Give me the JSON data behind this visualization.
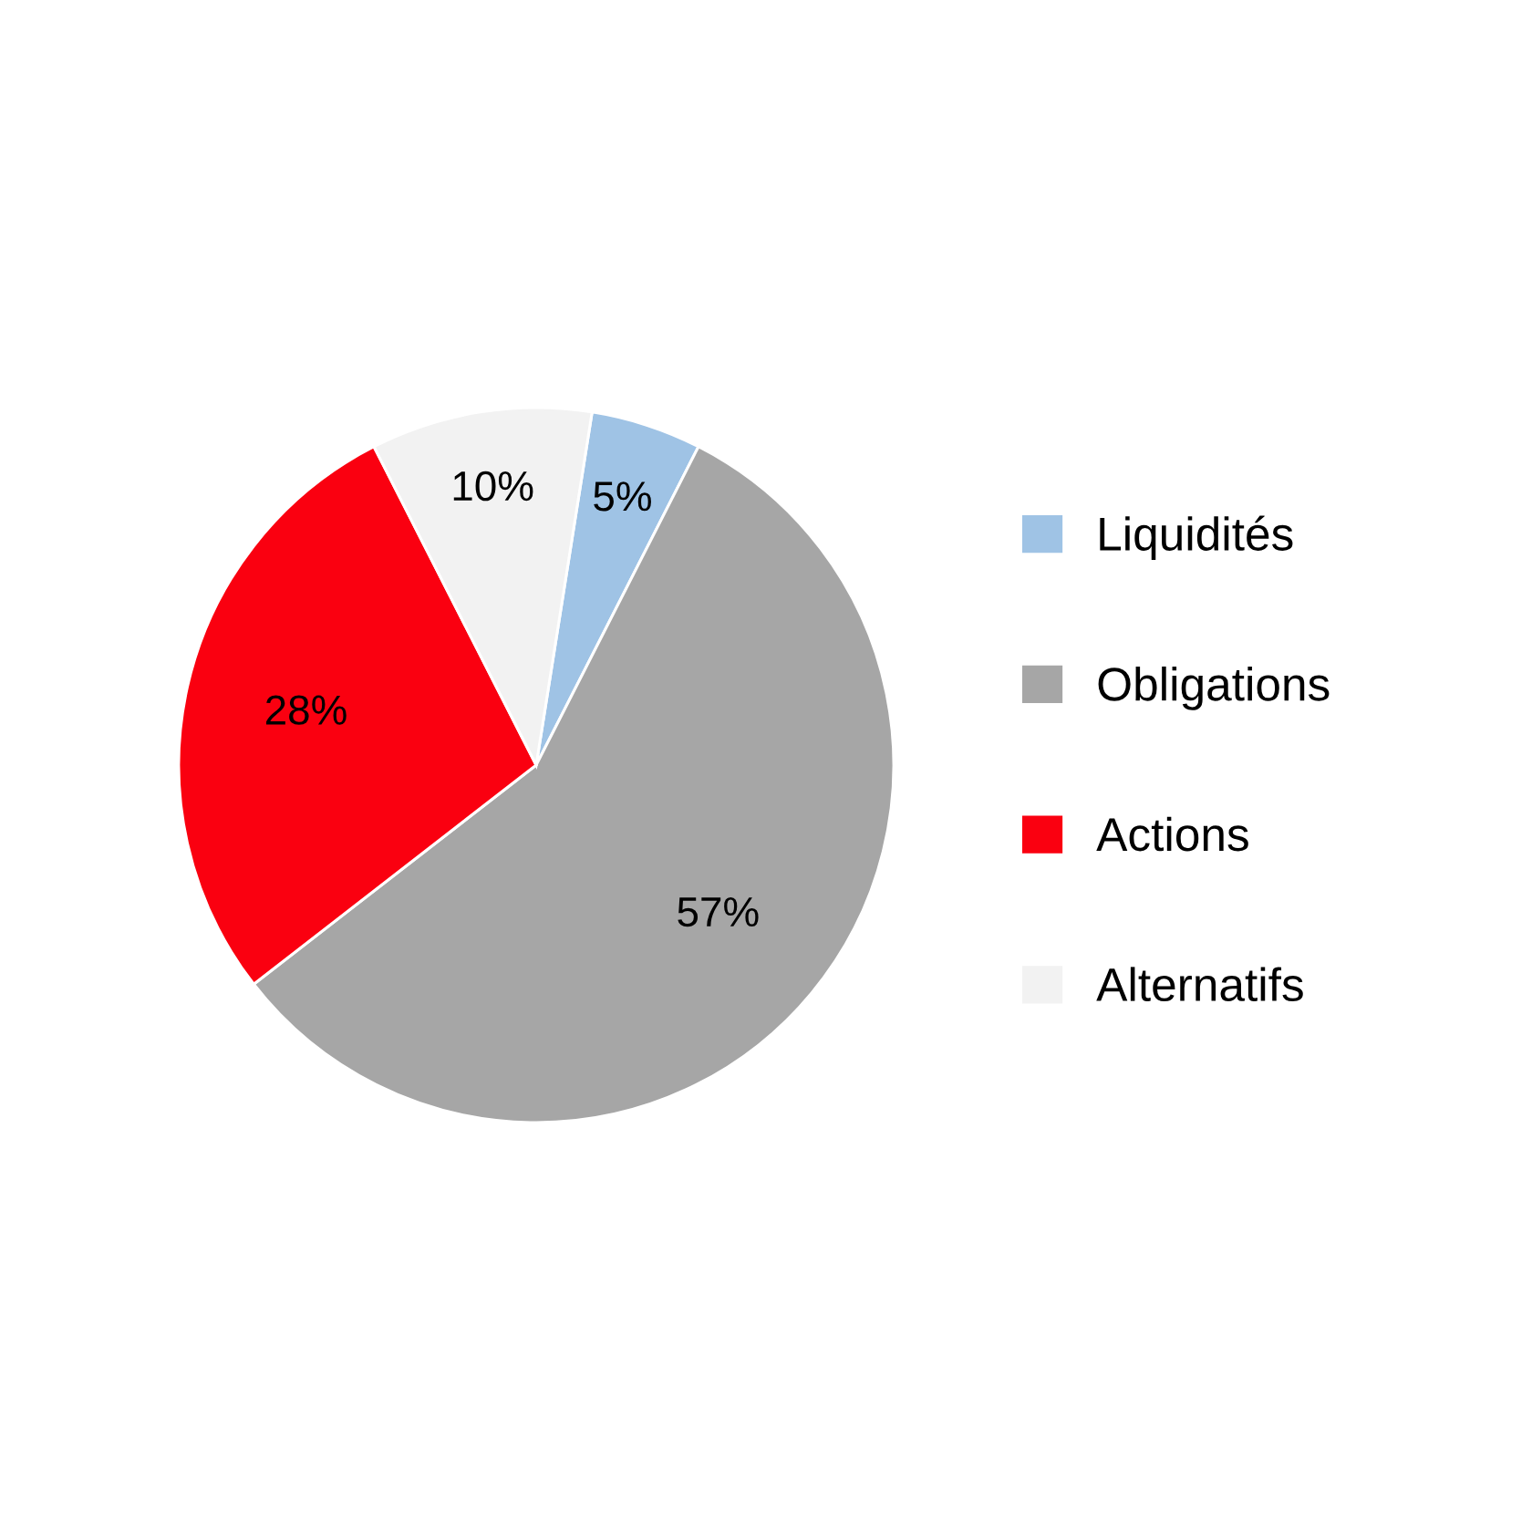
{
  "chart_data": {
    "type": "pie",
    "categories": [
      "Liquidités",
      "Obligations",
      "Actions",
      "Alternatifs"
    ],
    "values": [
      5,
      57,
      28,
      10
    ],
    "colors": [
      "#9fc3e5",
      "#a6a6a6",
      "#fa0010",
      "#f2f2f2"
    ],
    "value_labels": [
      "5%",
      "57%",
      "28%",
      "10%"
    ],
    "legend": "right"
  }
}
